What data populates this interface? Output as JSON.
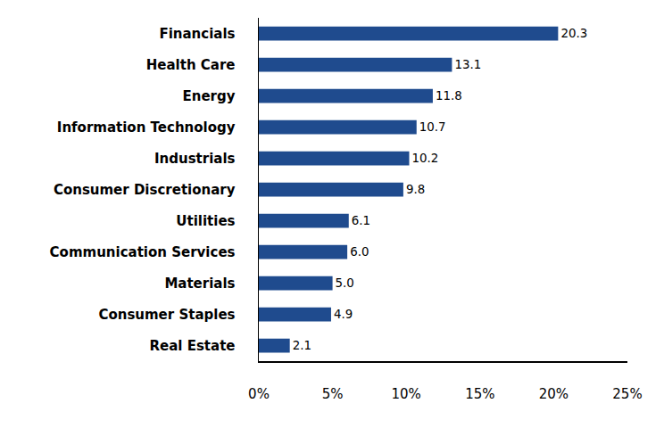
{
  "chart_data": {
    "type": "bar",
    "orientation": "horizontal",
    "categories": [
      "Financials",
      "Health Care",
      "Energy",
      "Information Technology",
      "Industrials",
      "Consumer Discretionary",
      "Utilities",
      "Communication Services",
      "Materials",
      "Consumer Staples",
      "Real Estate"
    ],
    "values": [
      20.3,
      13.1,
      11.8,
      10.7,
      10.2,
      9.8,
      6.1,
      6.0,
      5.0,
      4.9,
      2.1
    ],
    "value_labels": [
      "20.3",
      "13.1",
      "11.8",
      "10.7",
      "10.2",
      "9.8",
      "6.1",
      "6.0",
      "5.0",
      "4.9",
      "2.1"
    ],
    "data_labels": true,
    "color": "#1f4b8e",
    "xlim": [
      0,
      25
    ],
    "xticks": [
      {
        "value": 0,
        "label": "0%"
      },
      {
        "value": 5,
        "label": "5%"
      },
      {
        "value": 10,
        "label": "10%"
      },
      {
        "value": 15,
        "label": "15%"
      },
      {
        "value": 20,
        "label": "20%"
      },
      {
        "value": 25,
        "label": "25%"
      }
    ],
    "grid": false
  }
}
